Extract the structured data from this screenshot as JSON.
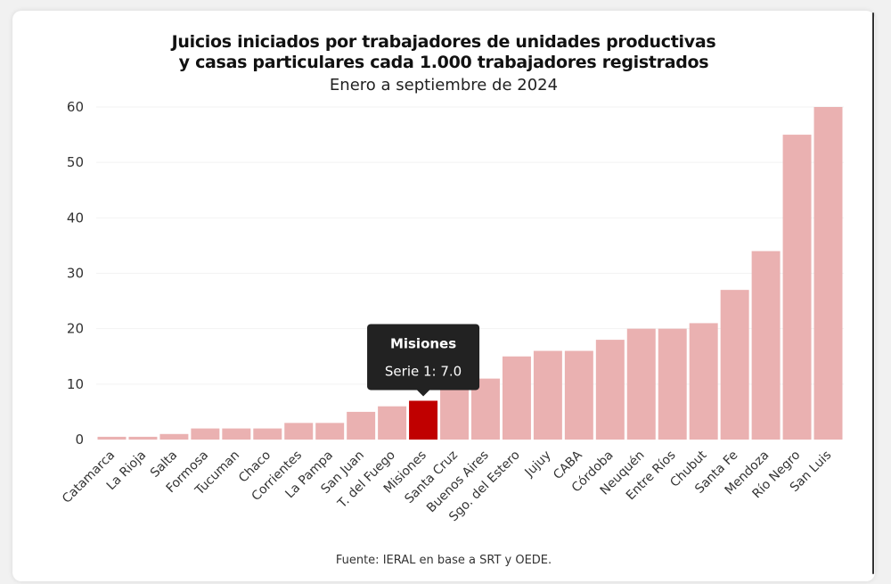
{
  "chart_data": {
    "type": "bar",
    "title": "Juicios iniciados por trabajadores de unidades productivas y casas particulares cada 1.000 trabajadores registrados",
    "title_lines": [
      "Juicios iniciados por trabajadores de unidades productivas",
      "y casas particulares cada 1.000 trabajadores registrados"
    ],
    "subtitle": "Enero a septiembre de 2024",
    "source": "Fuente: IERAL en base a SRT y OEDE.",
    "xlabel": "",
    "ylabel": "",
    "ylim": [
      0,
      60
    ],
    "yticks": [
      0,
      10,
      20,
      30,
      40,
      50,
      60
    ],
    "grid": true,
    "categories": [
      "Catamarca",
      "La Rioja",
      "Salta",
      "Formosa",
      "Tucuman",
      "Chaco",
      "Corrientes",
      "La Pampa",
      "San Juan",
      "T. del Fuego",
      "Misiones",
      "Santa Cruz",
      "Buenos Aires",
      "Sgo. del Estero",
      "Jujuy",
      "CABA",
      "Córdoba",
      "Neuquén",
      "Entre Ríos",
      "Chubut",
      "Santa Fe",
      "Mendoza",
      "Río Negro",
      "San Luis"
    ],
    "series": [
      {
        "name": "Serie 1",
        "values": [
          0.5,
          0.5,
          1,
          2,
          2,
          2,
          3,
          3,
          5,
          6,
          7.0,
          9,
          11,
          15,
          16,
          16,
          18,
          20,
          20,
          21,
          27,
          34,
          55,
          60
        ]
      }
    ],
    "highlight": {
      "category": "Misiones",
      "tooltip_title": "Misiones",
      "tooltip_text": "Serie 1: 7.0"
    },
    "colors": {
      "bar": "#eab1b1",
      "bar_highlight": "#c00000",
      "tooltip_bg": "#222222",
      "grid": "#f2f2f2"
    }
  }
}
